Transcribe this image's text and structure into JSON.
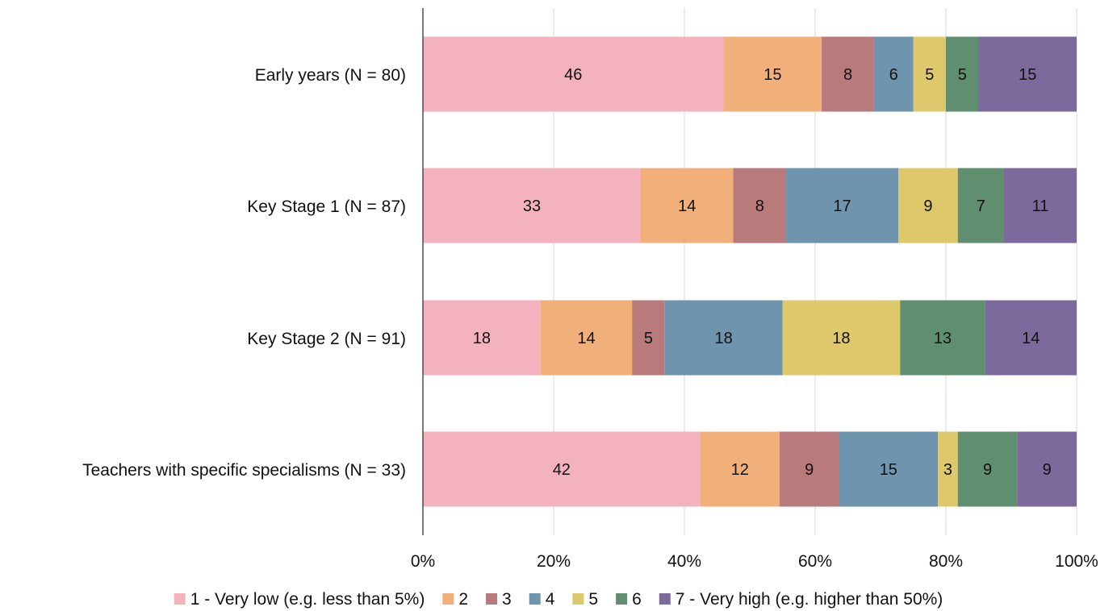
{
  "chart_data": {
    "type": "bar",
    "orientation": "horizontal",
    "stacked": "percent",
    "categories": [
      "Early years (N = 80)",
      "Key Stage 1 (N = 87)",
      "Key Stage 2 (N = 91)",
      "Teachers with specific specialisms (N = 33)"
    ],
    "series": [
      {
        "name": "1 - Very low (e.g. less than 5%)",
        "color": "#F4B2BE",
        "values": [
          46,
          33,
          18,
          42
        ]
      },
      {
        "name": "2",
        "color": "#F1AF7A",
        "values": [
          15,
          14,
          14,
          12
        ]
      },
      {
        "name": "3",
        "color": "#B87A7A",
        "values": [
          8,
          8,
          5,
          9
        ]
      },
      {
        "name": "4",
        "color": "#6E94AE",
        "values": [
          6,
          17,
          18,
          15
        ]
      },
      {
        "name": "5",
        "color": "#DDC86C",
        "values": [
          5,
          9,
          18,
          3
        ]
      },
      {
        "name": "6",
        "color": "#5F8F6E",
        "values": [
          5,
          7,
          13,
          9
        ]
      },
      {
        "name": "7 - Very high (e.g. higher than 50%)",
        "color": "#7C6A9C",
        "values": [
          15,
          11,
          14,
          9
        ]
      }
    ],
    "x_ticks": [
      "0%",
      "20%",
      "40%",
      "60%",
      "80%",
      "100%"
    ],
    "xlim": [
      0,
      100
    ],
    "grid": "vertical",
    "legend": "bottom"
  }
}
